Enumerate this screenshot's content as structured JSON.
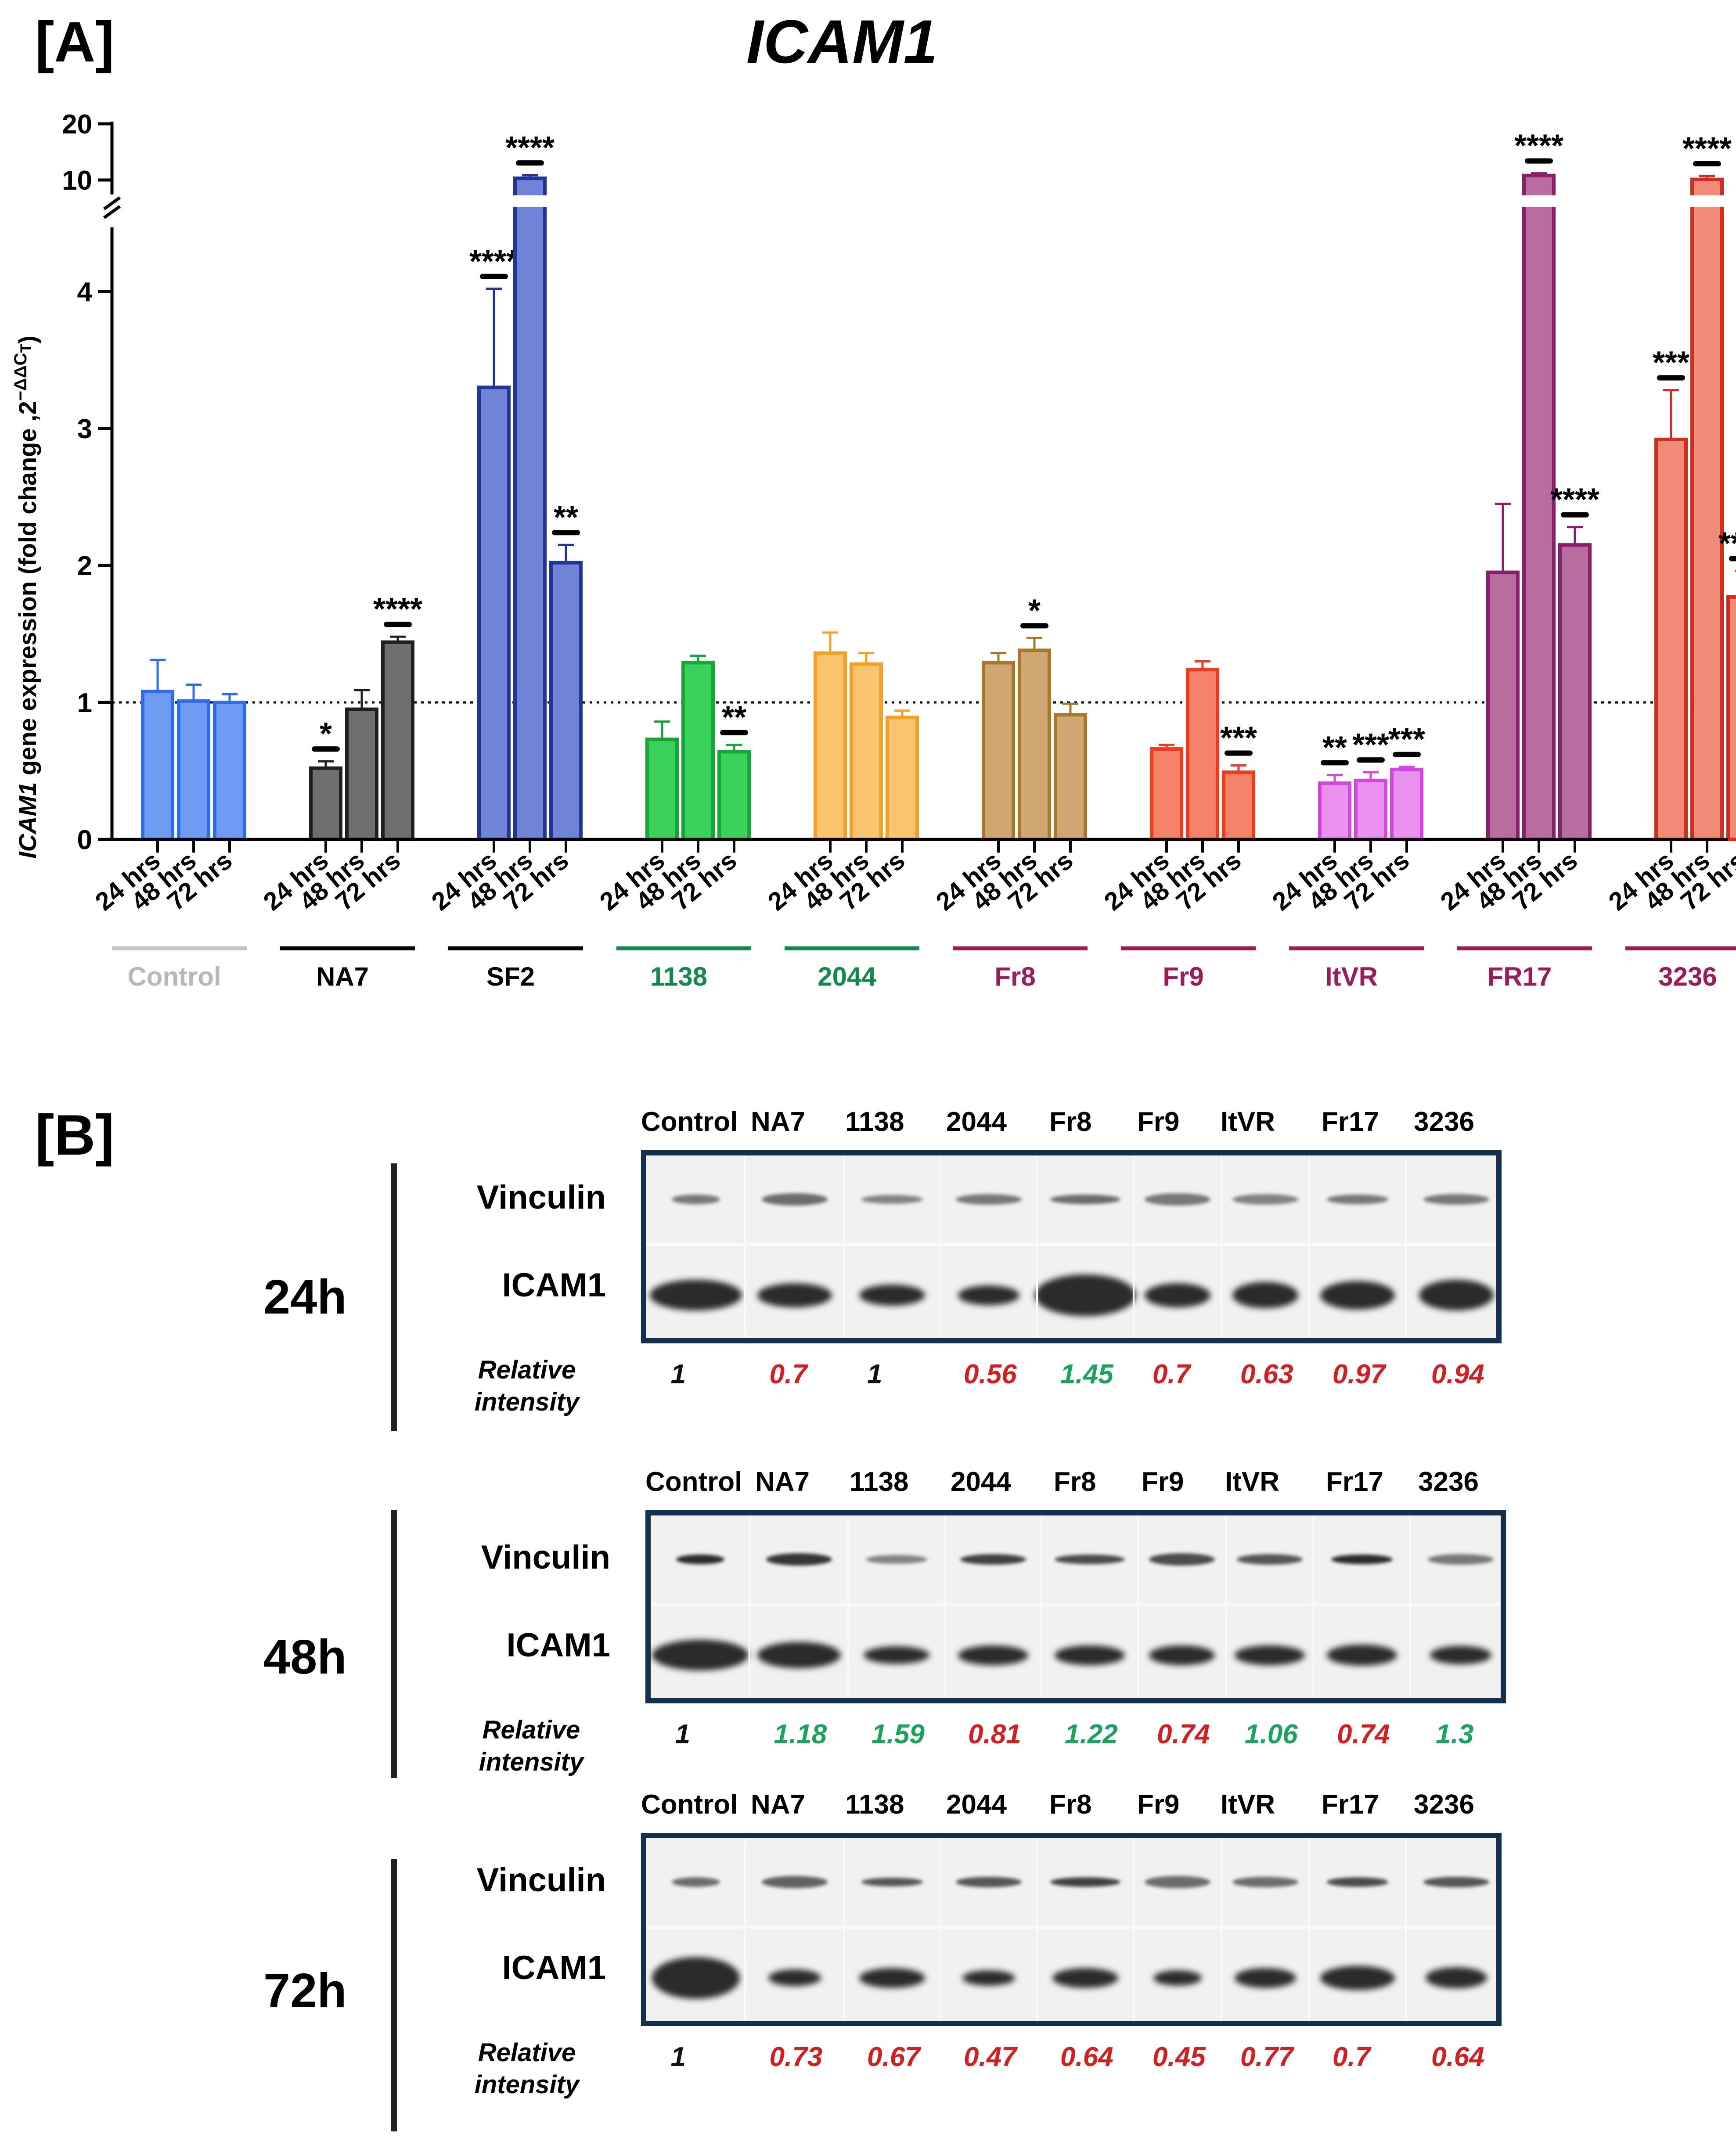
{
  "panel_a": {
    "label": "[A]",
    "title": "ICAM1",
    "ylabel_gene": "ICAM1",
    "ylabel_rest": " gene expression (fold change ,2",
    "ylabel_sup": "−ΔΔC",
    "ylabel_sub": "T",
    "ylabel_close": ")"
  },
  "chart_data": {
    "type": "bar",
    "title": "ICAM1",
    "ylabel": "ICAM1 gene expression (fold change ,2^-ΔΔCT)",
    "y_ticks_lower": [
      "0",
      "1",
      "2",
      "3",
      "4"
    ],
    "y_ticks_upper": [
      "10",
      "20"
    ],
    "ylim_lower": [
      0,
      4.5
    ],
    "ylim_upper": [
      10,
      20
    ],
    "axis_break": true,
    "reference_line": 1,
    "timepoints": [
      "24 hrs",
      "48 hrs",
      "72 hrs"
    ],
    "groups": [
      {
        "name": "Control",
        "label_color": "#b8b8b8",
        "line_color": "#c4c4c4",
        "fill": "#6e9cf5",
        "stroke": "#2f6bef",
        "values": [
          1.08,
          1.01,
          1.0
        ],
        "errors": [
          0.23,
          0.12,
          0.06
        ],
        "sig": [
          "",
          "",
          ""
        ]
      },
      {
        "name": "NA7",
        "label_color": "#000000",
        "line_color": "#000000",
        "fill": "#6f6f6f",
        "stroke": "#1f1f1f",
        "values": [
          0.52,
          0.95,
          1.44
        ],
        "errors": [
          0.05,
          0.14,
          0.04
        ],
        "sig": [
          "*",
          "",
          "****"
        ]
      },
      {
        "name": "SF2",
        "label_color": "#000000",
        "line_color": "#000000",
        "fill": "#6f84d6",
        "stroke": "#22349a",
        "values": [
          3.3,
          10.3,
          2.02
        ],
        "errors": [
          0.72,
          0.55,
          0.13
        ],
        "sig": [
          "****",
          "****",
          "**"
        ]
      },
      {
        "name": "1138",
        "label_color": "#128a4c",
        "line_color": "#128a4c",
        "fill": "#3bd15b",
        "stroke": "#14a838",
        "values": [
          0.73,
          1.29,
          0.64
        ],
        "errors": [
          0.13,
          0.05,
          0.05
        ],
        "sig": [
          "",
          "",
          "**"
        ]
      },
      {
        "name": "2044",
        "label_color": "#128a4c",
        "line_color": "#128a4c",
        "fill": "#fbc46e",
        "stroke": "#f4a023",
        "values": [
          1.36,
          1.28,
          0.89
        ],
        "errors": [
          0.15,
          0.08,
          0.05
        ],
        "sig": [
          "",
          "",
          ""
        ]
      },
      {
        "name": "Fr8",
        "label_color": "#9c1c55",
        "line_color": "#9c1c55",
        "fill": "#d0a772",
        "stroke": "#a8772c",
        "values": [
          1.29,
          1.38,
          0.91
        ],
        "errors": [
          0.07,
          0.09,
          0.08
        ],
        "sig": [
          "",
          "*",
          ""
        ]
      },
      {
        "name": "Fr9",
        "label_color": "#9c1c55",
        "line_color": "#9c1c55",
        "fill": "#f4836a",
        "stroke": "#ee3b1e",
        "values": [
          0.66,
          1.24,
          0.49
        ],
        "errors": [
          0.03,
          0.06,
          0.05
        ],
        "sig": [
          "",
          "",
          "***"
        ]
      },
      {
        "name": "ItVR",
        "label_color": "#9c1c55",
        "line_color": "#9c1c55",
        "fill": "#ea90ef",
        "stroke": "#d148dc",
        "values": [
          0.41,
          0.43,
          0.51
        ],
        "errors": [
          0.06,
          0.06,
          0.02
        ],
        "sig": [
          "**",
          "***",
          "***"
        ]
      },
      {
        "name": "FR17",
        "label_color": "#9c1c55",
        "line_color": "#9c1c55",
        "fill": "#b76e9e",
        "stroke": "#8a1e6c",
        "values": [
          1.95,
          10.8,
          2.15
        ],
        "errors": [
          0.5,
          0.4,
          0.13
        ],
        "sig": [
          "",
          "****",
          "****"
        ]
      },
      {
        "name": "3236",
        "label_color": "#9c1c55",
        "line_color": "#9c1c55",
        "fill": "#f08b78",
        "stroke": "#d22d1f",
        "values": [
          2.92,
          10.1,
          1.77
        ],
        "errors": [
          0.36,
          0.6,
          0.19
        ],
        "sig": [
          "***",
          "****",
          "****"
        ]
      }
    ]
  },
  "panel_b": {
    "label": "[B]",
    "row_labels": {
      "vinculin": "Vinculin",
      "icam1": "ICAM1"
    },
    "rel_label_line1": "Relative",
    "rel_label_line2": "intensity",
    "lane_names": [
      "Control",
      "NA7",
      "1138",
      "2044",
      "Fr8",
      "Fr9",
      "ItVR",
      "Fr17",
      "3236"
    ],
    "colors": {
      "increase": "#1aa35a",
      "decrease": "#d21f1f",
      "reference": "#111111",
      "frame": "#14304f"
    },
    "blots": [
      {
        "time": "24h",
        "intensity": [
          {
            "value": "1",
            "color": "#111111"
          },
          {
            "value": "0.7",
            "color": "#d21f1f"
          },
          {
            "value": "1",
            "color": "#111111"
          },
          {
            "value": "0.56",
            "color": "#d21f1f"
          },
          {
            "value": "1.45",
            "color": "#1aa35a"
          },
          {
            "value": "0.7",
            "color": "#d21f1f"
          },
          {
            "value": "0.63",
            "color": "#d21f1f"
          },
          {
            "value": "0.97",
            "color": "#d21f1f"
          },
          {
            "value": "0.94",
            "color": "#d21f1f"
          }
        ]
      },
      {
        "time": "48h",
        "intensity": [
          {
            "value": "1",
            "color": "#111111"
          },
          {
            "value": "1.18",
            "color": "#1aa35a"
          },
          {
            "value": "1.59",
            "color": "#1aa35a"
          },
          {
            "value": "0.81",
            "color": "#d21f1f"
          },
          {
            "value": "1.22",
            "color": "#1aa35a"
          },
          {
            "value": "0.74",
            "color": "#d21f1f"
          },
          {
            "value": "1.06",
            "color": "#1aa35a"
          },
          {
            "value": "0.74",
            "color": "#d21f1f"
          },
          {
            "value": "1.3",
            "color": "#1aa35a"
          }
        ]
      },
      {
        "time": "72h",
        "intensity": [
          {
            "value": "1",
            "color": "#111111"
          },
          {
            "value": "0.73",
            "color": "#d21f1f"
          },
          {
            "value": "0.67",
            "color": "#d21f1f"
          },
          {
            "value": "0.47",
            "color": "#d21f1f"
          },
          {
            "value": "0.64",
            "color": "#d21f1f"
          },
          {
            "value": "0.45",
            "color": "#d21f1f"
          },
          {
            "value": "0.77",
            "color": "#d21f1f"
          },
          {
            "value": "0.7",
            "color": "#d21f1f"
          },
          {
            "value": "0.64",
            "color": "#d21f1f"
          }
        ]
      }
    ]
  }
}
